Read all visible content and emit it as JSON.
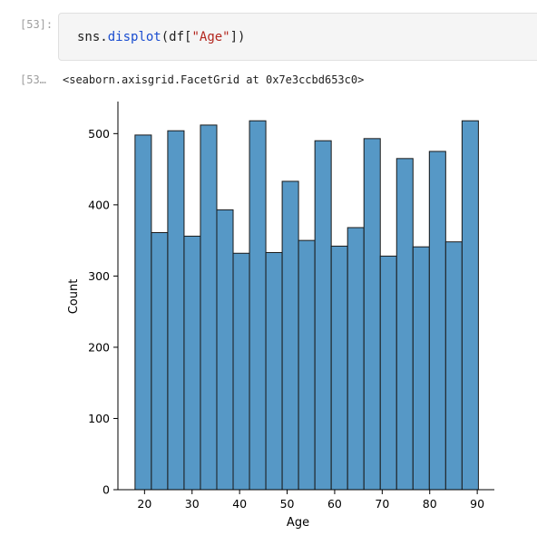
{
  "notebook": {
    "input_prompt": "[53]:",
    "output_prompt": "[53…",
    "code": {
      "obj": "sns",
      "dot": ".",
      "fn": "displot",
      "open": "(df[",
      "arg": "\"Age\"",
      "close": "])"
    },
    "output_text": "<seaborn.axisgrid.FacetGrid at 0x7e3ccbd653c0>"
  },
  "chart_data": {
    "type": "bar",
    "xlabel": "Age",
    "ylabel": "Count",
    "xlim": [
      14.4,
      93.6
    ],
    "ylim": [
      0,
      545
    ],
    "xticks": [
      20,
      30,
      40,
      50,
      60,
      70,
      80,
      90
    ],
    "yticks": [
      0,
      100,
      200,
      300,
      400,
      500
    ],
    "bin_start": 18,
    "bin_width": 3.44,
    "values": [
      498,
      361,
      504,
      356,
      512,
      393,
      332,
      518,
      333,
      433,
      350,
      490,
      342,
      368,
      493,
      328,
      465,
      341,
      475,
      348,
      518
    ],
    "colors": {
      "fill": "#5698c6",
      "edge": "#1a1a1a"
    }
  }
}
